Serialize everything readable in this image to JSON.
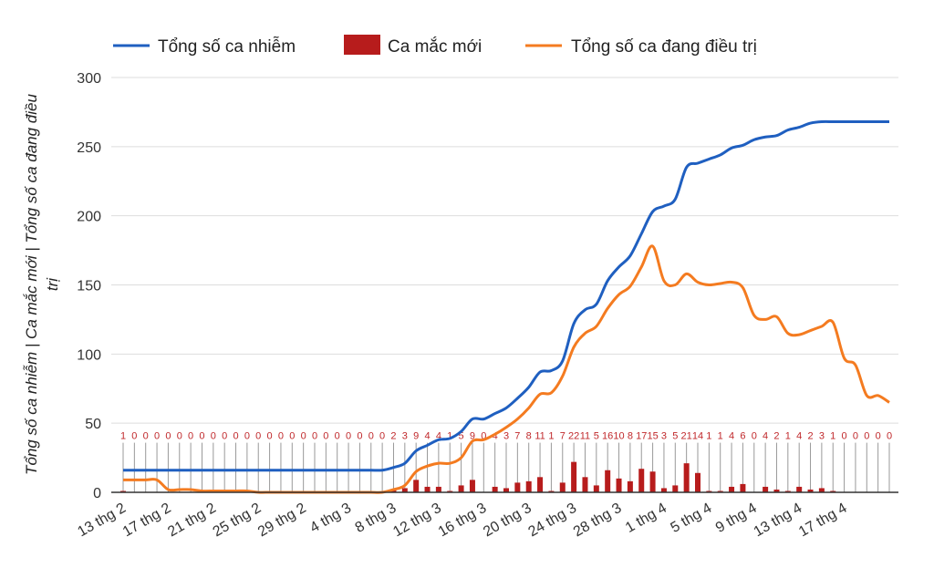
{
  "chart_data": {
    "type": "line",
    "ylabel_line1": "Tổng số ca nhiễm | Ca mắc mới | Tổng số ca đang điều",
    "ylabel_line2": "trị",
    "ylim": [
      0,
      300
    ],
    "yticks": [
      0,
      50,
      100,
      150,
      200,
      250,
      300
    ],
    "grid": true,
    "legend_position": "top",
    "colors": {
      "total": "#1f5fc0",
      "new": "#b71c1c",
      "active": "#f47b20"
    },
    "x_tick_labels": [
      "13 thg 2",
      "17 thg 2",
      "21 thg 2",
      "25 thg 2",
      "29 thg 2",
      "4 thg 3",
      "8 thg 3",
      "12 thg 3",
      "16 thg 3",
      "20 thg 3",
      "24 thg 3",
      "28 thg 3",
      "1 thg 4",
      "5 thg 4",
      "9 thg 4",
      "13 thg 4",
      "17 thg 4"
    ],
    "x_tick_day_index": [
      0,
      4,
      8,
      12,
      16,
      20,
      24,
      28,
      32,
      36,
      40,
      44,
      48,
      52,
      56,
      60,
      64
    ],
    "days": 69,
    "series": [
      {
        "name": "Tổng số ca nhiễm",
        "type": "line",
        "values": [
          16,
          16,
          16,
          16,
          16,
          16,
          16,
          16,
          16,
          16,
          16,
          16,
          16,
          16,
          16,
          16,
          16,
          16,
          16,
          16,
          16,
          16,
          16,
          16,
          18,
          21,
          30,
          34,
          38,
          39,
          44,
          53,
          53,
          57,
          61,
          68,
          76,
          87,
          88,
          95,
          122,
          132,
          136,
          153,
          163,
          171,
          187,
          203,
          207,
          212,
          235,
          238,
          241,
          244,
          249,
          251,
          255,
          257,
          258,
          262,
          264,
          267,
          268,
          268,
          268,
          268,
          268,
          268,
          268
        ]
      },
      {
        "name": "Ca mắc mới",
        "type": "bar",
        "values": [
          1,
          0,
          0,
          0,
          0,
          0,
          0,
          0,
          0,
          0,
          0,
          0,
          0,
          0,
          0,
          0,
          0,
          0,
          0,
          0,
          0,
          0,
          0,
          0,
          2,
          3,
          9,
          4,
          4,
          1,
          5,
          9,
          0,
          4,
          3,
          7,
          8,
          11,
          1,
          7,
          22,
          11,
          5,
          16,
          10,
          8,
          17,
          15,
          3,
          5,
          21,
          14,
          1,
          1,
          4,
          6,
          0,
          4,
          2,
          1,
          4,
          2,
          3,
          1,
          0,
          0,
          0,
          0,
          0
        ]
      },
      {
        "name": "Tổng số ca đang điều trị",
        "type": "line",
        "values": [
          9,
          9,
          9,
          9,
          2,
          2,
          2,
          1,
          1,
          1,
          1,
          1,
          0,
          0,
          0,
          0,
          0,
          0,
          0,
          0,
          0,
          0,
          0,
          0,
          2,
          5,
          15,
          19,
          21,
          21,
          25,
          37,
          38,
          42,
          47,
          53,
          61,
          71,
          72,
          84,
          105,
          115,
          120,
          133,
          143,
          149,
          163,
          178,
          153,
          150,
          158,
          152,
          150,
          151,
          152,
          148,
          128,
          125,
          127,
          115,
          114,
          117,
          120,
          123,
          97,
          92,
          70,
          70,
          65
        ]
      }
    ]
  }
}
